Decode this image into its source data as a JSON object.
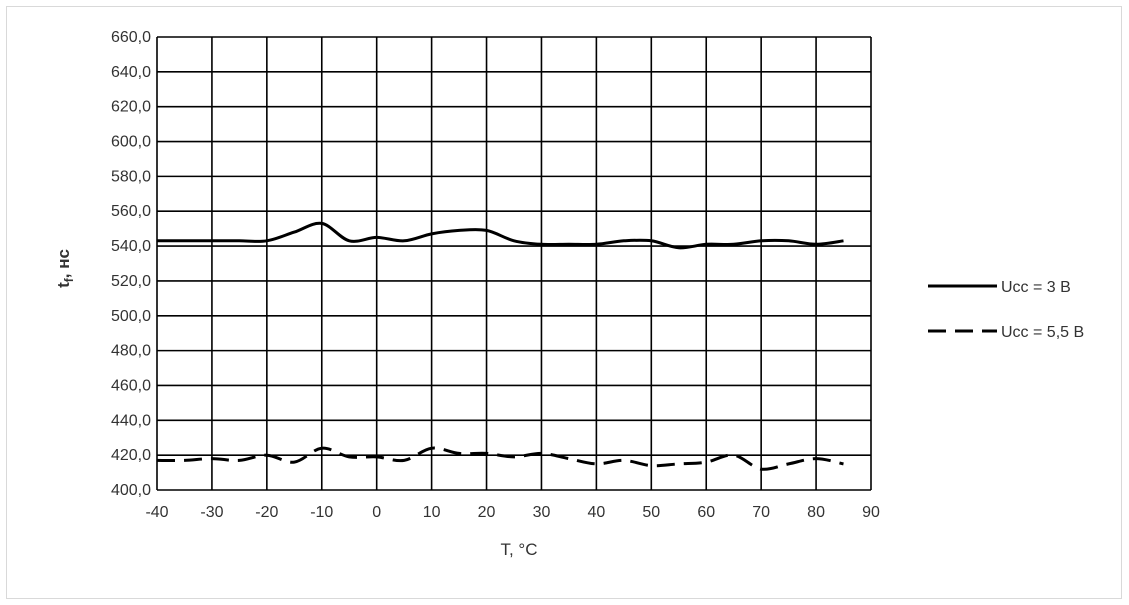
{
  "chart_data": {
    "type": "line",
    "title": "",
    "xlabel": "T, °C",
    "ylabel_main": "t",
    "ylabel_sub": "f",
    "ylabel_unit": ", нс",
    "xlim": [
      -40,
      90
    ],
    "ylim": [
      400,
      660
    ],
    "x_ticks": [
      -40,
      -30,
      -20,
      -10,
      0,
      10,
      20,
      30,
      40,
      50,
      60,
      70,
      80,
      90
    ],
    "x_tick_labels": [
      "-40",
      "-30",
      "-20",
      "-10",
      "0",
      "10",
      "20",
      "30",
      "40",
      "50",
      "60",
      "70",
      "80",
      "90"
    ],
    "y_ticks": [
      400,
      420,
      440,
      460,
      480,
      500,
      520,
      540,
      560,
      580,
      600,
      620,
      640,
      660
    ],
    "y_tick_labels": [
      "400,0",
      "420,0",
      "440,0",
      "460,0",
      "480,0",
      "500,0",
      "520,0",
      "540,0",
      "560,0",
      "580,0",
      "600,0",
      "620,0",
      "640,0",
      "660,0"
    ],
    "grid": true,
    "legend_position": "right",
    "series": [
      {
        "name": "Ucc = 3 В",
        "style": "solid",
        "color": "#000000",
        "x": [
          -40,
          -35,
          -30,
          -25,
          -20,
          -15,
          -10,
          -5,
          0,
          5,
          10,
          15,
          20,
          25,
          30,
          35,
          40,
          45,
          50,
          55,
          60,
          65,
          70,
          75,
          80,
          85
        ],
        "y": [
          543,
          543,
          543,
          543,
          543,
          548,
          553,
          543,
          545,
          543,
          547,
          549,
          549,
          543,
          541,
          541,
          541,
          543,
          543,
          539,
          541,
          541,
          543,
          543,
          541,
          543
        ]
      },
      {
        "name": "Ucc = 5,5 В",
        "style": "dashed",
        "color": "#000000",
        "x": [
          -40,
          -35,
          -30,
          -25,
          -20,
          -15,
          -10,
          -5,
          0,
          5,
          10,
          15,
          20,
          25,
          30,
          35,
          40,
          45,
          50,
          55,
          60,
          65,
          70,
          75,
          80,
          85
        ],
        "y": [
          417,
          417,
          418,
          417,
          420,
          416,
          424,
          419,
          419,
          417,
          424,
          421,
          421,
          419,
          421,
          418,
          415,
          417,
          414,
          415,
          416,
          420,
          412,
          415,
          418,
          415
        ]
      }
    ]
  }
}
